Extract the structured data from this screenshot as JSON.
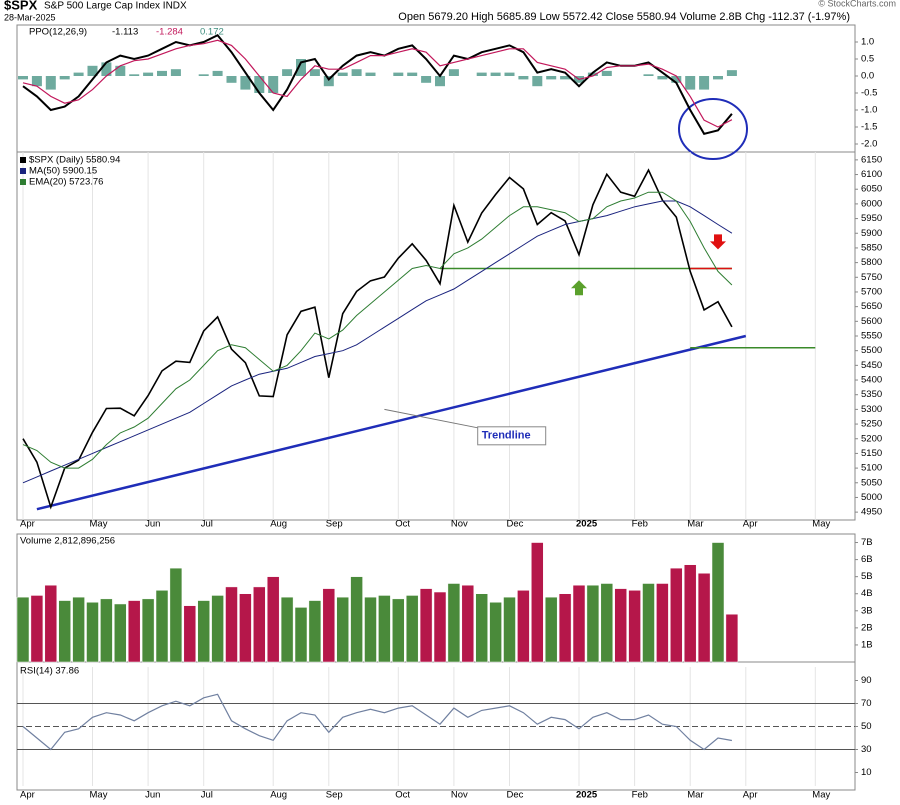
{
  "header": {
    "symbol": "$SPX",
    "name": "S&P 500 Large Cap Index INDX",
    "date": "28-Mar-2025",
    "quote": "Open 5679.20 High 5685.89 Low 5572.42 Close 5580.94 Volume 2.8B Chg -112.37 (-1.97%)",
    "credit": "© StockCharts.com"
  },
  "chart_data": [
    {
      "type": "ppo",
      "title": "PPO(12,26,9)",
      "ylim": [
        -2.25,
        1.5
      ],
      "yticks": [
        {
          "value": 1,
          "label": "1.0"
        },
        {
          "value": 0.5,
          "label": "0.5"
        },
        {
          "value": 0,
          "label": "0.0"
        },
        {
          "value": -0.5,
          "label": "-0.5"
        },
        {
          "value": -1,
          "label": "-1.0"
        },
        {
          "value": -1.5,
          "label": "-1.5"
        },
        {
          "value": -2,
          "label": "-2.0"
        }
      ],
      "series": [
        {
          "name": "-1.113",
          "color": "#000000",
          "kind": "line",
          "values": [
            -0.3,
            -0.6,
            -1.0,
            -0.9,
            -0.6,
            -0.1,
            0.4,
            0.6,
            0.5,
            0.6,
            0.8,
            1.0,
            0.9,
            1.0,
            1.2,
            0.7,
            0.1,
            -0.5,
            -1.0,
            -0.4,
            0.4,
            0.5,
            -0.1,
            0.3,
            0.6,
            0.7,
            0.6,
            0.8,
            0.9,
            0.5,
            0.0,
            0.6,
            0.5,
            0.7,
            0.8,
            0.9,
            0.7,
            0.1,
            0.2,
            0.1,
            -0.3,
            0.1,
            0.4,
            0.3,
            0.3,
            0.4,
            0.1,
            -0.2,
            -1.0,
            -1.7,
            -1.6,
            -1.113
          ]
        },
        {
          "name": "-1.284",
          "color": "#c2185b",
          "kind": "line",
          "values": [
            -0.2,
            -0.3,
            -0.6,
            -0.8,
            -0.7,
            -0.4,
            0.0,
            0.3,
            0.45,
            0.5,
            0.65,
            0.8,
            0.9,
            0.95,
            1.05,
            0.9,
            0.5,
            0.0,
            -0.5,
            -0.6,
            -0.1,
            0.3,
            0.2,
            0.2,
            0.4,
            0.6,
            0.6,
            0.7,
            0.8,
            0.7,
            0.3,
            0.4,
            0.5,
            0.6,
            0.7,
            0.8,
            0.8,
            0.4,
            0.3,
            0.2,
            -0.1,
            0.0,
            0.25,
            0.3,
            0.3,
            0.35,
            0.2,
            0.0,
            -0.6,
            -1.3,
            -1.5,
            -1.284
          ]
        },
        {
          "name": "0.172",
          "color": "#3e8e7e",
          "kind": "bar",
          "values": [
            -0.1,
            -0.3,
            -0.4,
            -0.1,
            0.1,
            0.3,
            0.4,
            0.3,
            0.05,
            0.1,
            0.15,
            0.2,
            0.0,
            0.05,
            0.15,
            -0.2,
            -0.4,
            -0.5,
            -0.5,
            0.2,
            0.5,
            0.2,
            -0.3,
            0.1,
            0.2,
            0.1,
            0.0,
            0.1,
            0.1,
            -0.2,
            -0.3,
            0.2,
            0.0,
            0.1,
            0.1,
            0.1,
            -0.1,
            -0.3,
            -0.1,
            -0.1,
            -0.2,
            0.1,
            0.15,
            0.0,
            0.0,
            0.05,
            -0.1,
            -0.2,
            -0.4,
            -0.4,
            -0.1,
            0.172
          ]
        }
      ]
    },
    {
      "type": "price",
      "ylim": [
        4930,
        6170
      ],
      "yticks": [
        6150,
        6100,
        6050,
        6000,
        5950,
        5900,
        5850,
        5800,
        5750,
        5700,
        5650,
        5600,
        5550,
        5500,
        5450,
        5400,
        5350,
        5300,
        5250,
        5200,
        5150,
        5100,
        5050,
        5000,
        4950
      ],
      "categories": [
        "Apr",
        null,
        null,
        null,
        null,
        "May",
        null,
        null,
        null,
        "Jun",
        null,
        null,
        null,
        "Jul",
        null,
        null,
        null,
        null,
        "Aug",
        null,
        null,
        null,
        "Sep",
        null,
        null,
        null,
        null,
        "Oct",
        null,
        null,
        null,
        "Nov",
        null,
        null,
        null,
        "Dec",
        null,
        null,
        null,
        null,
        "2025",
        null,
        null,
        null,
        "Feb",
        null,
        null,
        null,
        "Mar",
        null,
        null,
        null,
        "Apr",
        null,
        null,
        null,
        null,
        "May"
      ],
      "series": [
        {
          "name": "$SPX (Daily) 5580.94",
          "color": "#000000",
          "values": [
            5200,
            5120,
            4967,
            5100,
            5127,
            5222,
            5303,
            5304,
            5278,
            5347,
            5431,
            5464,
            5460,
            5567,
            5615,
            5505,
            5459,
            5346,
            5344,
            5554,
            5634,
            5648,
            5408,
            5626,
            5702,
            5738,
            5751,
            5815,
            5864,
            5808,
            5728,
            5995,
            5870,
            5969,
            6032,
            6090,
            6051,
            5930,
            5970,
            5942,
            5827,
            5997,
            6101,
            6040,
            6026,
            6115,
            6013,
            5955,
            5770,
            5639,
            5667,
            5580.94,
            null,
            null,
            null,
            null,
            null,
            null
          ]
        },
        {
          "name": "MA(50) 5900.15",
          "color": "#1a237e",
          "values": [
            5050,
            5070,
            5090,
            5110,
            5130,
            5150,
            5170,
            5190,
            5210,
            5230,
            5250,
            5270,
            5290,
            5320,
            5350,
            5380,
            5400,
            5420,
            5430,
            5440,
            5460,
            5480,
            5490,
            5500,
            5520,
            5550,
            5580,
            5610,
            5640,
            5670,
            5690,
            5710,
            5740,
            5770,
            5800,
            5830,
            5860,
            5890,
            5910,
            5930,
            5940,
            5950,
            5960,
            5975,
            5990,
            6000,
            6010,
            6010,
            5990,
            5960,
            5930,
            5900.15,
            null,
            null,
            null,
            null,
            null,
            null
          ]
        },
        {
          "name": "EMA(20) 5723.76",
          "color": "#2e7d32",
          "values": [
            5180,
            5160,
            5120,
            5100,
            5100,
            5130,
            5180,
            5220,
            5240,
            5270,
            5320,
            5370,
            5400,
            5450,
            5500,
            5520,
            5510,
            5470,
            5430,
            5450,
            5500,
            5560,
            5540,
            5570,
            5620,
            5660,
            5700,
            5740,
            5780,
            5790,
            5780,
            5830,
            5850,
            5880,
            5920,
            5960,
            5990,
            5990,
            5980,
            5970,
            5940,
            5950,
            5990,
            6010,
            6020,
            6040,
            6040,
            6010,
            5940,
            5850,
            5770,
            5723.76,
            null,
            null,
            null,
            null,
            null,
            null
          ]
        }
      ],
      "trendline": {
        "label": "Trendline",
        "x": [
          1,
          52
        ],
        "y": [
          4960,
          5550
        ],
        "color": "#1f2db8"
      },
      "levels": [
        {
          "y": 5780,
          "x": [
            30,
            51
          ],
          "color": "#3a8a2a"
        },
        {
          "y": 5780,
          "x": [
            48,
            51
          ],
          "color": "#dd1111"
        },
        {
          "y": 5510,
          "x": [
            48,
            57
          ],
          "color": "#3a8a2a"
        }
      ],
      "arrows": [
        {
          "x": 40,
          "y": 5740,
          "dir": "up",
          "color": "#5aa02c"
        },
        {
          "x": 50,
          "y": 5845,
          "dir": "down",
          "color": "#e01010"
        }
      ]
    },
    {
      "type": "volume",
      "title": "Volume 2,812,896,256",
      "ylim": [
        0,
        7.5
      ],
      "up_color": "#4a8a3a",
      "down_color": "#b5174a",
      "yticks": [
        {
          "value": 7,
          "label": "7B"
        },
        {
          "value": 6,
          "label": "6B"
        },
        {
          "value": 5,
          "label": "5B"
        },
        {
          "value": 4,
          "label": "4B"
        },
        {
          "value": 3,
          "label": "3B"
        },
        {
          "value": 2,
          "label": "2B"
        },
        {
          "value": 1,
          "label": "1B"
        }
      ],
      "values": [
        3.8,
        3.9,
        4.5,
        3.6,
        3.8,
        3.5,
        3.7,
        3.4,
        3.6,
        3.7,
        4.2,
        5.5,
        3.3,
        3.6,
        3.9,
        4.4,
        4.0,
        4.4,
        5.0,
        3.8,
        3.2,
        3.6,
        4.3,
        3.8,
        5.0,
        3.8,
        3.9,
        3.7,
        3.9,
        4.3,
        4.1,
        4.6,
        4.5,
        4.0,
        3.5,
        3.8,
        4.2,
        7.0,
        3.8,
        4.0,
        4.5,
        4.5,
        4.6,
        4.3,
        4.2,
        4.6,
        4.6,
        5.5,
        5.7,
        5.2,
        7.0,
        2.8
      ]
    },
    {
      "type": "rsi",
      "title": "RSI(14) 37.86",
      "ylim": [
        0,
        100
      ],
      "color": "#7080a0",
      "levels": [
        70,
        50,
        30
      ],
      "yticks": [
        90,
        70,
        50,
        30,
        10
      ],
      "categories": [
        "Apr",
        null,
        null,
        null,
        null,
        "May",
        null,
        null,
        null,
        "Jun",
        null,
        null,
        null,
        "Jul",
        null,
        null,
        null,
        null,
        "Aug",
        null,
        null,
        null,
        "Sep",
        null,
        null,
        null,
        null,
        "Oct",
        null,
        null,
        null,
        "Nov",
        null,
        null,
        null,
        "Dec",
        null,
        null,
        null,
        null,
        "2025",
        null,
        null,
        null,
        "Feb",
        null,
        null,
        null,
        "Mar",
        null,
        null,
        null,
        "Apr",
        null,
        null,
        null,
        null,
        "May"
      ],
      "values": [
        50,
        40,
        30,
        45,
        48,
        58,
        62,
        60,
        55,
        62,
        68,
        72,
        68,
        75,
        78,
        55,
        48,
        42,
        38,
        55,
        62,
        60,
        45,
        58,
        62,
        65,
        62,
        66,
        68,
        60,
        52,
        66,
        58,
        64,
        66,
        68,
        62,
        52,
        58,
        56,
        48,
        58,
        62,
        56,
        56,
        60,
        52,
        50,
        38,
        30,
        40,
        37.86,
        null,
        null,
        null,
        null,
        null,
        null
      ]
    }
  ]
}
